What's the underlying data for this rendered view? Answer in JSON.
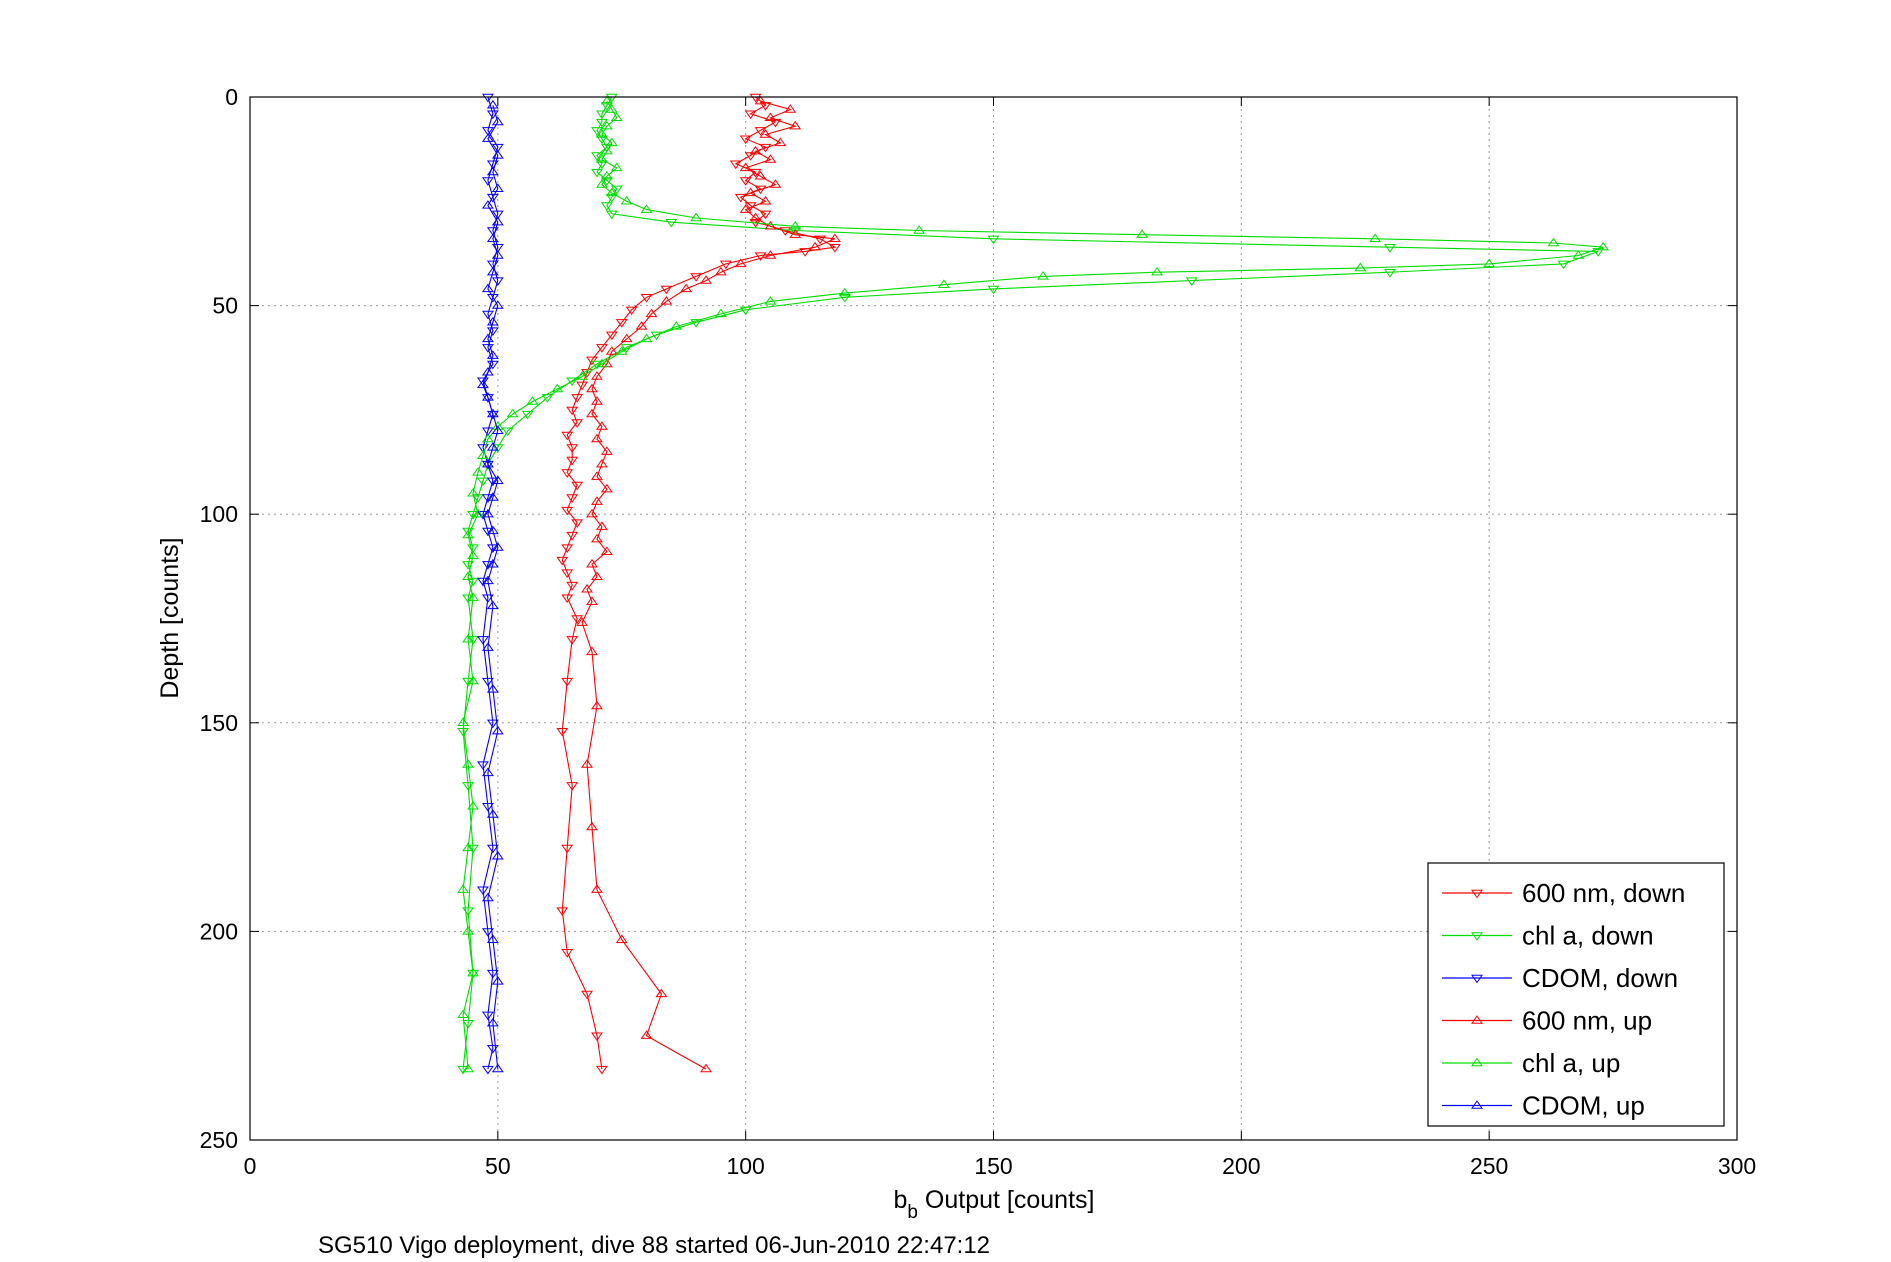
{
  "chart_data": {
    "type": "scatter",
    "xlabel_main": "b",
    "xlabel_sub": "b",
    "xlabel_rest": " Output [counts]",
    "ylabel": "Depth [counts]",
    "caption": "SG510 Vigo deployment, dive 88 started 06-Jun-2010 22:47:12",
    "xlim": [
      0,
      300
    ],
    "ylim": [
      0,
      250
    ],
    "y_reversed": true,
    "grid": true,
    "legend_position": "bottom-right",
    "x_ticks": [
      "0",
      "50",
      "100",
      "150",
      "200",
      "250",
      "300"
    ],
    "y_ticks": [
      "0",
      "50",
      "100",
      "150",
      "200",
      "250"
    ],
    "colors": {
      "red": "#ff0000",
      "green": "#00dd00",
      "blue": "#0000ff"
    },
    "series": [
      {
        "name": "600 nm, down",
        "color": "#ff0000",
        "marker": "triangle-down",
        "line": true,
        "points": [
          [
            102,
            0
          ],
          [
            104,
            2
          ],
          [
            101,
            4
          ],
          [
            106,
            6
          ],
          [
            103,
            8
          ],
          [
            100,
            10
          ],
          [
            104,
            12
          ],
          [
            101,
            14
          ],
          [
            98,
            16
          ],
          [
            102,
            18
          ],
          [
            100,
            20
          ],
          [
            103,
            22
          ],
          [
            99,
            24
          ],
          [
            101,
            26
          ],
          [
            104,
            28
          ],
          [
            102,
            30
          ],
          [
            108,
            32
          ],
          [
            115,
            34
          ],
          [
            118,
            36
          ],
          [
            112,
            37
          ],
          [
            103,
            38
          ],
          [
            96,
            40
          ],
          [
            90,
            43
          ],
          [
            84,
            46
          ],
          [
            80,
            48
          ],
          [
            77,
            51
          ],
          [
            75,
            54
          ],
          [
            73,
            57
          ],
          [
            71,
            60
          ],
          [
            69,
            63
          ],
          [
            68,
            66
          ],
          [
            67,
            69
          ],
          [
            66,
            72
          ],
          [
            65,
            75
          ],
          [
            66,
            78
          ],
          [
            64,
            81
          ],
          [
            65,
            84
          ],
          [
            65,
            87
          ],
          [
            64,
            90
          ],
          [
            66,
            93
          ],
          [
            65,
            96
          ],
          [
            64,
            99
          ],
          [
            66,
            102
          ],
          [
            65,
            105
          ],
          [
            64,
            108
          ],
          [
            63,
            111
          ],
          [
            64,
            114
          ],
          [
            65,
            117
          ],
          [
            64,
            120
          ],
          [
            66,
            125
          ],
          [
            65,
            130
          ],
          [
            64,
            140
          ],
          [
            63,
            152
          ],
          [
            65,
            165
          ],
          [
            64,
            180
          ],
          [
            63,
            195
          ],
          [
            64,
            205
          ],
          [
            68,
            215
          ],
          [
            70,
            225
          ],
          [
            71,
            233
          ]
        ]
      },
      {
        "name": "chl a, down",
        "color": "#00dd00",
        "marker": "triangle-down",
        "line": true,
        "points": [
          [
            73,
            0
          ],
          [
            72,
            2
          ],
          [
            71,
            4
          ],
          [
            71,
            6
          ],
          [
            70,
            8
          ],
          [
            71,
            10
          ],
          [
            72,
            12
          ],
          [
            70,
            14
          ],
          [
            71,
            16
          ],
          [
            70,
            18
          ],
          [
            72,
            20
          ],
          [
            74,
            22
          ],
          [
            73,
            24
          ],
          [
            72,
            26
          ],
          [
            73,
            28
          ],
          [
            85,
            30
          ],
          [
            110,
            32
          ],
          [
            150,
            34
          ],
          [
            230,
            36
          ],
          [
            272,
            37
          ],
          [
            265,
            40
          ],
          [
            230,
            42
          ],
          [
            190,
            44
          ],
          [
            150,
            46
          ],
          [
            120,
            48
          ],
          [
            100,
            51
          ],
          [
            90,
            54
          ],
          [
            82,
            57
          ],
          [
            76,
            60
          ],
          [
            70,
            64
          ],
          [
            65,
            68
          ],
          [
            60,
            72
          ],
          [
            56,
            76
          ],
          [
            52,
            80
          ],
          [
            50,
            84
          ],
          [
            48,
            88
          ],
          [
            47,
            92
          ],
          [
            46,
            96
          ],
          [
            45,
            100
          ],
          [
            44,
            104
          ],
          [
            45,
            108
          ],
          [
            44,
            112
          ],
          [
            45,
            116
          ],
          [
            44,
            120
          ],
          [
            45,
            130
          ],
          [
            44,
            140
          ],
          [
            43,
            152
          ],
          [
            44,
            165
          ],
          [
            45,
            180
          ],
          [
            44,
            195
          ],
          [
            45,
            210
          ],
          [
            44,
            222
          ],
          [
            43,
            233
          ]
        ]
      },
      {
        "name": "CDOM, down",
        "color": "#0000ff",
        "marker": "triangle-down",
        "line": true,
        "points": [
          [
            48,
            0
          ],
          [
            49,
            4
          ],
          [
            48,
            8
          ],
          [
            50,
            12
          ],
          [
            49,
            16
          ],
          [
            48,
            20
          ],
          [
            49,
            24
          ],
          [
            50,
            28
          ],
          [
            49,
            32
          ],
          [
            50,
            36
          ],
          [
            49,
            40
          ],
          [
            50,
            44
          ],
          [
            49,
            48
          ],
          [
            48,
            52
          ],
          [
            49,
            56
          ],
          [
            48,
            60
          ],
          [
            49,
            64
          ],
          [
            47,
            68
          ],
          [
            48,
            72
          ],
          [
            49,
            76
          ],
          [
            48,
            80
          ],
          [
            47,
            84
          ],
          [
            48,
            88
          ],
          [
            49,
            92
          ],
          [
            48,
            96
          ],
          [
            47,
            100
          ],
          [
            48,
            104
          ],
          [
            49,
            108
          ],
          [
            48,
            112
          ],
          [
            47,
            116
          ],
          [
            48,
            120
          ],
          [
            47,
            130
          ],
          [
            48,
            140
          ],
          [
            49,
            150
          ],
          [
            47,
            160
          ],
          [
            48,
            170
          ],
          [
            49,
            180
          ],
          [
            47,
            190
          ],
          [
            48,
            200
          ],
          [
            49,
            210
          ],
          [
            48,
            220
          ],
          [
            49,
            228
          ],
          [
            48,
            233
          ]
        ]
      },
      {
        "name": "600 nm, up",
        "color": "#ff0000",
        "marker": "triangle-up",
        "line": true,
        "points": [
          [
            103,
            1
          ],
          [
            109,
            3
          ],
          [
            105,
            5
          ],
          [
            110,
            7
          ],
          [
            104,
            9
          ],
          [
            107,
            11
          ],
          [
            102,
            13
          ],
          [
            105,
            15
          ],
          [
            100,
            17
          ],
          [
            103,
            19
          ],
          [
            106,
            21
          ],
          [
            101,
            23
          ],
          [
            104,
            25
          ],
          [
            100,
            27
          ],
          [
            102,
            29
          ],
          [
            105,
            31
          ],
          [
            110,
            33
          ],
          [
            118,
            34
          ],
          [
            114,
            36
          ],
          [
            105,
            38
          ],
          [
            99,
            40
          ],
          [
            95,
            42
          ],
          [
            92,
            44
          ],
          [
            88,
            46
          ],
          [
            84,
            49
          ],
          [
            81,
            52
          ],
          [
            79,
            55
          ],
          [
            76,
            58
          ],
          [
            73,
            61
          ],
          [
            72,
            64
          ],
          [
            70,
            67
          ],
          [
            69,
            70
          ],
          [
            70,
            73
          ],
          [
            69,
            76
          ],
          [
            71,
            79
          ],
          [
            70,
            82
          ],
          [
            72,
            85
          ],
          [
            71,
            88
          ],
          [
            70,
            91
          ],
          [
            72,
            94
          ],
          [
            70,
            97
          ],
          [
            69,
            100
          ],
          [
            71,
            103
          ],
          [
            70,
            106
          ],
          [
            72,
            109
          ],
          [
            69,
            112
          ],
          [
            70,
            115
          ],
          [
            68,
            118
          ],
          [
            69,
            121
          ],
          [
            67,
            126
          ],
          [
            69,
            133
          ],
          [
            70,
            146
          ],
          [
            68,
            160
          ],
          [
            69,
            175
          ],
          [
            70,
            190
          ],
          [
            75,
            202
          ],
          [
            83,
            215
          ],
          [
            80,
            225
          ],
          [
            92,
            233
          ]
        ]
      },
      {
        "name": "chl a, up",
        "color": "#00dd00",
        "marker": "triangle-up",
        "line": true,
        "points": [
          [
            72,
            1
          ],
          [
            73,
            3
          ],
          [
            74,
            5
          ],
          [
            72,
            7
          ],
          [
            71,
            9
          ],
          [
            73,
            11
          ],
          [
            72,
            13
          ],
          [
            71,
            15
          ],
          [
            74,
            17
          ],
          [
            72,
            19
          ],
          [
            71,
            21
          ],
          [
            73,
            23
          ],
          [
            76,
            25
          ],
          [
            80,
            27
          ],
          [
            90,
            29
          ],
          [
            110,
            31
          ],
          [
            135,
            32
          ],
          [
            180,
            33
          ],
          [
            227,
            34
          ],
          [
            263,
            35
          ],
          [
            273,
            36
          ],
          [
            268,
            38
          ],
          [
            250,
            40
          ],
          [
            224,
            41
          ],
          [
            183,
            42
          ],
          [
            160,
            43
          ],
          [
            140,
            45
          ],
          [
            120,
            47
          ],
          [
            105,
            49
          ],
          [
            95,
            52
          ],
          [
            86,
            55
          ],
          [
            80,
            58
          ],
          [
            75,
            61
          ],
          [
            71,
            64
          ],
          [
            67,
            67
          ],
          [
            62,
            70
          ],
          [
            57,
            73
          ],
          [
            53,
            76
          ],
          [
            50,
            79
          ],
          [
            48,
            82
          ],
          [
            47,
            86
          ],
          [
            46,
            90
          ],
          [
            45,
            95
          ],
          [
            46,
            100
          ],
          [
            44,
            105
          ],
          [
            45,
            110
          ],
          [
            44,
            115
          ],
          [
            45,
            120
          ],
          [
            44,
            130
          ],
          [
            45,
            140
          ],
          [
            43,
            150
          ],
          [
            44,
            160
          ],
          [
            45,
            170
          ],
          [
            44,
            180
          ],
          [
            43,
            190
          ],
          [
            44,
            200
          ],
          [
            45,
            210
          ],
          [
            43,
            220
          ],
          [
            44,
            233
          ]
        ]
      },
      {
        "name": "CDOM, up",
        "color": "#0000ff",
        "marker": "triangle-up",
        "line": true,
        "points": [
          [
            49,
            2
          ],
          [
            50,
            6
          ],
          [
            48,
            10
          ],
          [
            50,
            14
          ],
          [
            49,
            18
          ],
          [
            50,
            22
          ],
          [
            48,
            26
          ],
          [
            50,
            30
          ],
          [
            49,
            34
          ],
          [
            50,
            38
          ],
          [
            49,
            42
          ],
          [
            48,
            46
          ],
          [
            50,
            50
          ],
          [
            49,
            54
          ],
          [
            48,
            58
          ],
          [
            49,
            62
          ],
          [
            48,
            66
          ],
          [
            47,
            69
          ],
          [
            48,
            72
          ],
          [
            49,
            76
          ],
          [
            50,
            80
          ],
          [
            49,
            84
          ],
          [
            48,
            88
          ],
          [
            50,
            92
          ],
          [
            49,
            96
          ],
          [
            48,
            100
          ],
          [
            49,
            104
          ],
          [
            50,
            108
          ],
          [
            49,
            112
          ],
          [
            48,
            116
          ],
          [
            49,
            122
          ],
          [
            48,
            132
          ],
          [
            49,
            142
          ],
          [
            50,
            152
          ],
          [
            48,
            162
          ],
          [
            49,
            172
          ],
          [
            50,
            182
          ],
          [
            48,
            192
          ],
          [
            49,
            202
          ],
          [
            50,
            212
          ],
          [
            49,
            222
          ],
          [
            50,
            233
          ]
        ]
      }
    ]
  }
}
